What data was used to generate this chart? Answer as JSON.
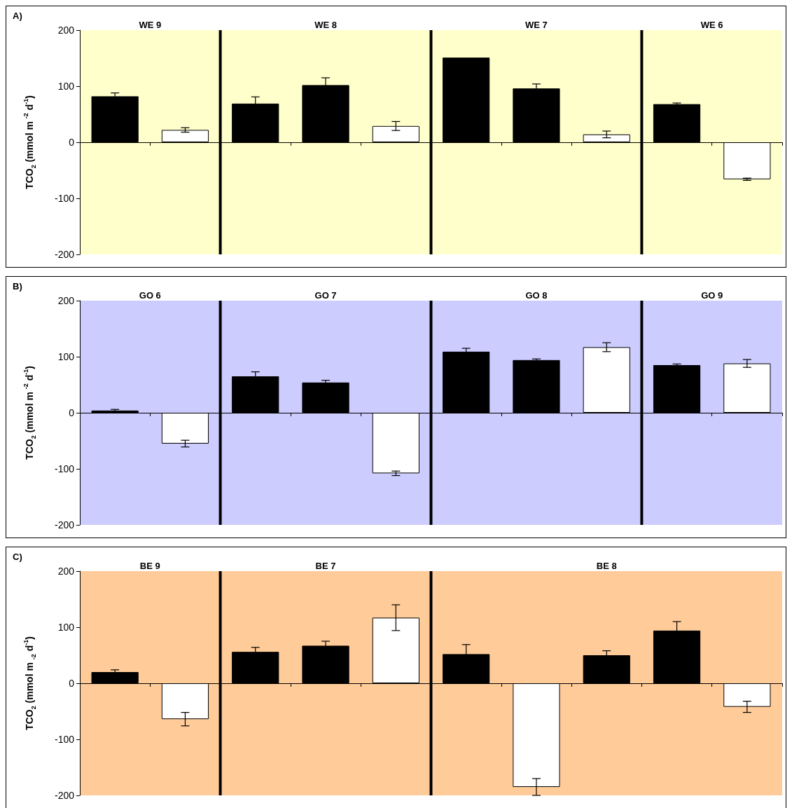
{
  "chart_data": [
    {
      "type": "bar",
      "title": "A)",
      "ylabel": "TCO$_{2}$ (mmol m $^{-2}$ d$^{-1}$)",
      "categories": [
        null,
        null,
        null,
        null,
        null,
        null,
        null,
        null,
        null,
        null
      ],
      "values": [
        82,
        22,
        69,
        102,
        29,
        151,
        96,
        14,
        68,
        -66
      ],
      "errors": [
        6,
        4,
        12,
        13,
        8,
        null,
        8,
        6,
        2,
        2
      ],
      "colors": [
        "#000000",
        "#ffffff",
        "#000000",
        "#000000",
        "#ffffff",
        "#000000",
        "#000000",
        "#ffffff",
        "#000000",
        "#ffffff"
      ],
      "ylim": [
        -200,
        200
      ],
      "yticks": [
        -200,
        -100,
        0,
        100,
        200
      ],
      "grid": false,
      "tick_labels": "y",
      "annotations": [
        "WE 9",
        "WE 8",
        "WE 7",
        "WE 6"
      ]
    },
    {
      "type": "bar",
      "title": "B)",
      "ylabel": "TCO$_{2}$ (mmol m $^{-2}$ d$^{-1}$)",
      "categories": [
        null,
        null,
        null,
        null,
        null,
        null,
        null,
        null,
        null,
        null
      ],
      "values": [
        4,
        -55,
        65,
        54,
        -108,
        109,
        94,
        117,
        85,
        88
      ],
      "errors": [
        2,
        6,
        8,
        4,
        4,
        6,
        2,
        8,
        2,
        7
      ],
      "colors": [
        "#000000",
        "#ffffff",
        "#000000",
        "#000000",
        "#ffffff",
        "#000000",
        "#000000",
        "#ffffff",
        "#000000",
        "#ffffff"
      ],
      "ylim": [
        -200,
        200
      ],
      "yticks": [
        -200,
        -100,
        0,
        100,
        200
      ],
      "grid": false,
      "tick_labels": "y",
      "annotations": [
        "GO 6",
        "GO 7",
        "GO 8",
        "GO 9"
      ]
    },
    {
      "type": "bar",
      "title": "C)",
      "ylabel": "TCO$_{2}$ (mmol m $_{-2}$ d$^{-1}$)",
      "categories": [
        null,
        null,
        null,
        null,
        null,
        null,
        null,
        null,
        null,
        null
      ],
      "values": [
        20,
        -64,
        56,
        67,
        117,
        52,
        -185,
        50,
        94,
        -42
      ],
      "errors": [
        4,
        12,
        8,
        8,
        23,
        17,
        15,
        8,
        16,
        10
      ],
      "colors": [
        "#000000",
        "#ffffff",
        "#000000",
        "#000000",
        "#ffffff",
        "#000000",
        "#ffffff",
        "#000000",
        "#000000",
        "#ffffff"
      ],
      "ylim": [
        -200,
        200
      ],
      "yticks": [
        -200,
        -100,
        0,
        100,
        200
      ],
      "grid": false,
      "tick_labels": "y",
      "annotations": [
        "BE 9",
        "BE 7",
        "BE 8"
      ]
    }
  ]
}
